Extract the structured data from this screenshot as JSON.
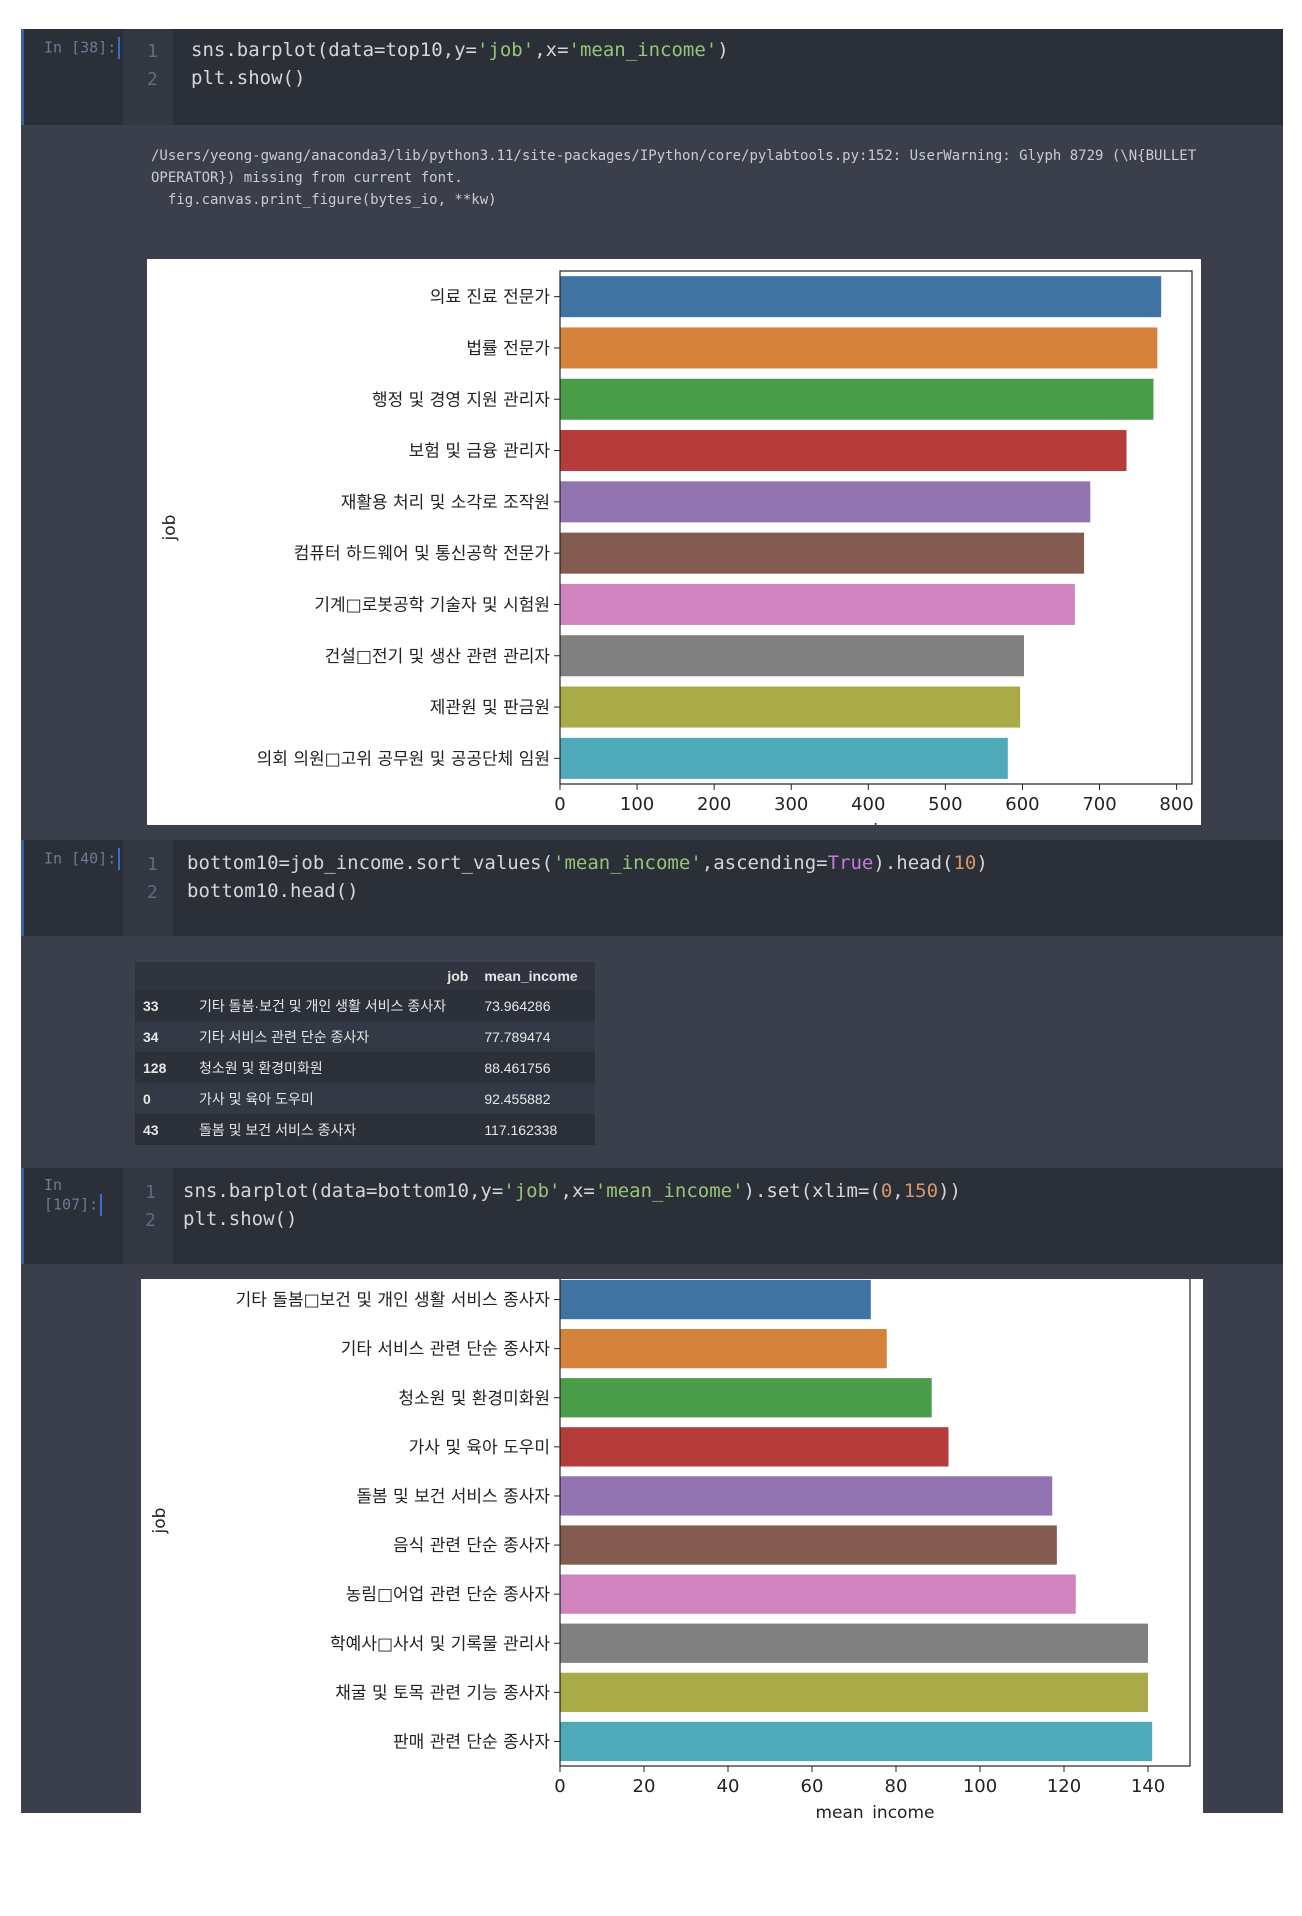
{
  "cells": [
    {
      "prompt": "In [38]:",
      "lines": [
        "1",
        "2"
      ]
    },
    {
      "prompt": "In [40]:",
      "lines": [
        "1",
        "2"
      ]
    },
    {
      "prompt": "In [107]:",
      "lines": [
        "1",
        "2"
      ]
    }
  ],
  "code": {
    "c1_line1": [
      "sns.barplot(data=top10,y=",
      "'job'",
      ",x=",
      "'mean_income'",
      ")"
    ],
    "c1_line2": "plt.show()",
    "c2_line1": [
      "bottom10=job_income.sort_values(",
      "'mean_income'",
      ",ascending=",
      "True",
      ").head(",
      "10",
      ")"
    ],
    "c2_line2": "bottom10.head()",
    "c3_line1": [
      "sns.barplot(data=bottom10,y=",
      "'job'",
      ",x=",
      "'mean_income'",
      ").set(xlim=(",
      "0",
      ",",
      "150",
      "))"
    ],
    "c3_line2": "plt.show()"
  },
  "warning": {
    "line1": "/Users/yeong-gwang/anaconda3/lib/python3.11/site-packages/IPython/core/pylabtools.py:152: UserWarning: Glyph 8729 (\\N{BULLET",
    "line2": "OPERATOR}) missing from current font.",
    "line3": "  fig.canvas.print_figure(bytes_io, **kw)"
  },
  "dataframe": {
    "columns": [
      "job",
      "mean_income"
    ],
    "rows": [
      {
        "idx": "33",
        "job": "기타 돌봄·보건 및 개인 생활 서비스 종사자",
        "mean_income": "73.964286"
      },
      {
        "idx": "34",
        "job": "기타 서비스 관련 단순 종사자",
        "mean_income": "77.789474"
      },
      {
        "idx": "128",
        "job": "청소원 및 환경미화원",
        "mean_income": "88.461756"
      },
      {
        "idx": "0",
        "job": "가사 및 육아 도우미",
        "mean_income": "92.455882"
      },
      {
        "idx": "43",
        "job": "돌봄 및 보건 서비스 종사자",
        "mean_income": "117.162338"
      }
    ]
  },
  "chart_data": [
    {
      "type": "bar",
      "orientation": "horizontal",
      "xlabel": "mean_income",
      "ylabel": "job",
      "xlim": [
        0,
        820
      ],
      "xticks": [
        0,
        100,
        200,
        300,
        400,
        500,
        600,
        700,
        800
      ],
      "categories": [
        "의료 진료 전문가",
        "법률 전문가",
        "행정 및 경영 지원 관리자",
        "보험 및 금융 관리자",
        "재활용 처리 및 소각로 조작원",
        "컴퓨터 하드웨어 및 통신공학 전문가",
        "기계□로봇공학 기술자 및 시험원",
        "건설□전기 및 생산 관련 관리자",
        "제관원 및 판금원",
        "의회 의원□고위 공무원 및 공공단체 임원"
      ],
      "values": [
        780,
        775,
        770,
        735,
        688,
        680,
        668,
        602,
        597,
        581
      ],
      "colors": [
        "#3f74a2",
        "#d5823a",
        "#4a9d48",
        "#b63b3b",
        "#9174b0",
        "#835b51",
        "#cf84bf",
        "#808080",
        "#a9ab48",
        "#4ea9b8"
      ]
    },
    {
      "type": "bar",
      "orientation": "horizontal",
      "xlabel": "mean_income",
      "ylabel": "job",
      "xlim": [
        0,
        150
      ],
      "xticks": [
        0,
        20,
        40,
        60,
        80,
        100,
        120,
        140
      ],
      "categories": [
        "기타 돌봄□보건 및 개인 생활 서비스 종사자",
        "기타 서비스 관련 단순 종사자",
        "청소원 및 환경미화원",
        "가사 및 육아 도우미",
        "돌봄 및 보건 서비스 종사자",
        "음식 관련 단순 종사자",
        "농림□어업 관련 단순 종사자",
        "학예사□사서 및 기록물 관리사",
        "채굴 및 토목 관련 기능 종사자",
        "판매 관련 단순 종사자"
      ],
      "values": [
        74.0,
        77.8,
        88.5,
        92.5,
        117.2,
        118.3,
        122.8,
        140.0,
        140.0,
        141.0
      ],
      "colors": [
        "#3f74a2",
        "#d5823a",
        "#4a9d48",
        "#b63b3b",
        "#9174b0",
        "#835b51",
        "#cf84bf",
        "#808080",
        "#a9ab48",
        "#4ea9b8"
      ]
    }
  ]
}
